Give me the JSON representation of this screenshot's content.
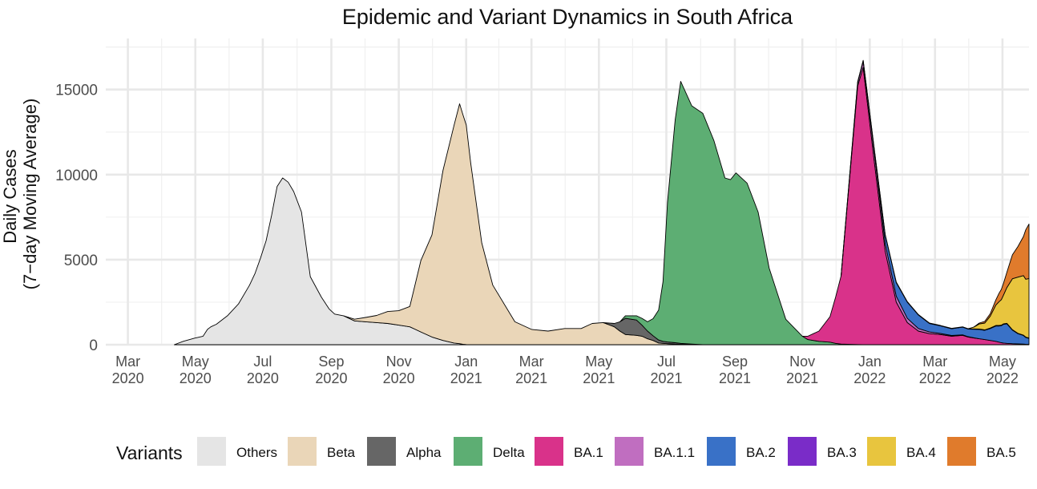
{
  "chart_data": {
    "type": "area",
    "stacked": true,
    "title": "Epidemic and Variant Dynamics in South Africa",
    "ylabel_lines": [
      "Daily Cases",
      "(7−day Moving Average)"
    ],
    "xlabel": "",
    "ylim": [
      0,
      18000
    ],
    "xlim_days": [
      -20,
      815
    ],
    "x_origin": "2020-03-01",
    "y_ticks": [
      {
        "value": 0,
        "label": "0"
      },
      {
        "value": 5000,
        "label": "5000"
      },
      {
        "value": 10000,
        "label": "10000"
      },
      {
        "value": 15000,
        "label": "15000"
      }
    ],
    "x_ticks": [
      {
        "day": 0,
        "month": "Mar",
        "year": "2020"
      },
      {
        "day": 61,
        "month": "May",
        "year": "2020"
      },
      {
        "day": 122,
        "month": "Jul",
        "year": "2020"
      },
      {
        "day": 184,
        "month": "Sep",
        "year": "2020"
      },
      {
        "day": 245,
        "month": "Nov",
        "year": "2020"
      },
      {
        "day": 306,
        "month": "Jan",
        "year": "2021"
      },
      {
        "day": 365,
        "month": "Mar",
        "year": "2021"
      },
      {
        "day": 426,
        "month": "May",
        "year": "2021"
      },
      {
        "day": 487,
        "month": "Jul",
        "year": "2021"
      },
      {
        "day": 549,
        "month": "Sep",
        "year": "2021"
      },
      {
        "day": 610,
        "month": "Nov",
        "year": "2021"
      },
      {
        "day": 671,
        "month": "Jan",
        "year": "2022"
      },
      {
        "day": 730,
        "month": "Mar",
        "year": "2022"
      },
      {
        "day": 791,
        "month": "May",
        "year": "2022"
      }
    ],
    "legend": {
      "title": "Variants",
      "position": "bottom",
      "entries": [
        {
          "name": "Others",
          "color": "#E5E5E5"
        },
        {
          "name": "Beta",
          "color": "#EAD6B8"
        },
        {
          "name": "Alpha",
          "color": "#666666"
        },
        {
          "name": "Delta",
          "color": "#5DAE73"
        },
        {
          "name": "BA.1",
          "color": "#D9328A"
        },
        {
          "name": "BA.1.1",
          "color": "#C06EC0"
        },
        {
          "name": "BA.2",
          "color": "#3971C7"
        },
        {
          "name": "BA.3",
          "color": "#7A2CC8"
        },
        {
          "name": "BA.4",
          "color": "#E8C53E"
        },
        {
          "name": "BA.5",
          "color": "#E07B2C"
        }
      ]
    },
    "x_days": [
      42,
      50,
      60,
      68,
      72,
      75,
      80,
      90,
      100,
      110,
      115,
      120,
      125,
      130,
      135,
      140,
      145,
      150,
      157,
      165,
      175,
      182,
      187,
      195,
      205,
      215,
      225,
      235,
      245,
      255,
      260,
      265,
      275,
      285,
      295,
      300,
      303,
      306,
      310,
      320,
      330,
      350,
      365,
      380,
      395,
      410,
      420,
      430,
      440,
      445,
      450,
      460,
      465,
      470,
      475,
      480,
      484,
      488,
      495,
      500,
      510,
      520,
      530,
      540,
      545,
      550,
      560,
      570,
      580,
      595,
      610,
      615,
      620,
      625,
      635,
      640,
      645,
      660,
      665,
      675,
      685,
      695,
      705,
      715,
      725,
      735,
      745,
      755,
      760,
      765,
      770,
      775,
      780,
      785,
      788,
      790,
      792,
      795,
      800,
      805,
      810,
      812,
      815
    ],
    "series": [
      {
        "name": "Others",
        "values": [
          0,
          200,
          380,
          500,
          900,
          1050,
          1200,
          1700,
          2400,
          3500,
          4200,
          5100,
          6100,
          7600,
          9300,
          9800,
          9550,
          9000,
          7800,
          4000,
          2800,
          2100,
          1800,
          1700,
          1400,
          1350,
          1300,
          1250,
          1150,
          1050,
          900,
          750,
          450,
          250,
          100,
          60,
          30,
          10,
          0,
          0,
          0,
          0,
          0,
          0,
          0,
          0,
          0,
          0,
          0,
          0,
          0,
          0,
          0,
          0,
          0,
          0,
          0,
          0,
          0,
          0,
          0,
          0,
          0,
          0,
          0,
          0,
          0,
          0,
          0,
          0,
          0,
          0,
          0,
          0,
          0,
          0,
          0,
          0,
          0,
          0,
          0,
          0,
          0,
          0,
          0,
          0,
          0,
          0,
          0,
          0,
          0,
          0,
          0,
          0,
          0,
          0,
          0,
          0,
          0,
          0,
          0,
          0,
          0
        ]
      },
      {
        "name": "Beta",
        "values": [
          0,
          0,
          0,
          0,
          0,
          0,
          0,
          0,
          0,
          0,
          0,
          0,
          0,
          0,
          0,
          0,
          0,
          0,
          0,
          0,
          0,
          0,
          0,
          0,
          100,
          250,
          420,
          700,
          850,
          1200,
          2700,
          4200,
          6000,
          10000,
          12800,
          14100,
          13500,
          12900,
          10700,
          6000,
          3500,
          1350,
          900,
          800,
          950,
          950,
          1250,
          1300,
          1050,
          800,
          600,
          550,
          500,
          350,
          250,
          100,
          80,
          60,
          40,
          30,
          20,
          0,
          0,
          0,
          0,
          0,
          0,
          0,
          0,
          0,
          0,
          0,
          0,
          0,
          0,
          0,
          0,
          0,
          0,
          0,
          0,
          0,
          0,
          0,
          0,
          0,
          0,
          0,
          0,
          0,
          0,
          0,
          0,
          0,
          0,
          0,
          0,
          0,
          0,
          0,
          0,
          0,
          0
        ]
      },
      {
        "name": "Alpha",
        "values": [
          0,
          0,
          0,
          0,
          0,
          0,
          0,
          0,
          0,
          0,
          0,
          0,
          0,
          0,
          0,
          0,
          0,
          0,
          0,
          0,
          0,
          0,
          0,
          0,
          0,
          0,
          0,
          0,
          0,
          0,
          0,
          0,
          0,
          0,
          0,
          0,
          0,
          0,
          0,
          0,
          0,
          0,
          0,
          0,
          0,
          0,
          0,
          0,
          200,
          550,
          950,
          900,
          650,
          450,
          280,
          180,
          120,
          100,
          80,
          50,
          20,
          0,
          0,
          0,
          0,
          0,
          0,
          0,
          0,
          0,
          0,
          0,
          0,
          0,
          0,
          0,
          0,
          0,
          0,
          0,
          0,
          0,
          0,
          0,
          0,
          0,
          0,
          0,
          0,
          0,
          0,
          0,
          0,
          0,
          0,
          0,
          0,
          0,
          0,
          0,
          0,
          0,
          0
        ]
      },
      {
        "name": "Delta",
        "values": [
          0,
          0,
          0,
          0,
          0,
          0,
          0,
          0,
          0,
          0,
          0,
          0,
          0,
          0,
          0,
          0,
          0,
          0,
          0,
          0,
          0,
          0,
          0,
          0,
          0,
          0,
          0,
          0,
          0,
          0,
          0,
          0,
          0,
          0,
          0,
          0,
          0,
          0,
          0,
          0,
          0,
          0,
          0,
          0,
          0,
          0,
          0,
          0,
          0,
          0,
          150,
          250,
          400,
          550,
          1000,
          1750,
          3500,
          8200,
          13100,
          15400,
          14000,
          13600,
          12000,
          9800,
          9700,
          10100,
          9500,
          7800,
          4500,
          1500,
          500,
          300,
          250,
          200,
          150,
          80,
          40,
          10,
          0,
          0,
          0,
          0,
          0,
          0,
          0,
          0,
          0,
          0,
          0,
          0,
          0,
          0,
          0,
          0,
          0,
          0,
          0,
          0,
          0,
          0,
          0,
          0,
          0
        ]
      },
      {
        "name": "BA.1",
        "values": [
          0,
          0,
          0,
          0,
          0,
          0,
          0,
          0,
          0,
          0,
          0,
          0,
          0,
          0,
          0,
          0,
          0,
          0,
          0,
          0,
          0,
          0,
          0,
          0,
          0,
          0,
          0,
          0,
          0,
          0,
          0,
          0,
          0,
          0,
          0,
          0,
          0,
          0,
          0,
          0,
          0,
          0,
          0,
          0,
          0,
          0,
          0,
          0,
          0,
          0,
          0,
          0,
          0,
          0,
          0,
          0,
          0,
          0,
          0,
          0,
          0,
          0,
          0,
          0,
          0,
          0,
          0,
          0,
          0,
          0,
          0,
          200,
          400,
          600,
          1500,
          2700,
          4000,
          15200,
          16300,
          10800,
          5500,
          2500,
          1300,
          800,
          650,
          600,
          500,
          550,
          450,
          400,
          350,
          300,
          250,
          200,
          150,
          120,
          100,
          80,
          60,
          50,
          40,
          30,
          20
        ]
      },
      {
        "name": "BA.1.1",
        "values": [
          0,
          0,
          0,
          0,
          0,
          0,
          0,
          0,
          0,
          0,
          0,
          0,
          0,
          0,
          0,
          0,
          0,
          0,
          0,
          0,
          0,
          0,
          0,
          0,
          0,
          0,
          0,
          0,
          0,
          0,
          0,
          0,
          0,
          0,
          0,
          0,
          0,
          0,
          0,
          0,
          0,
          0,
          0,
          0,
          0,
          0,
          0,
          0,
          0,
          0,
          0,
          0,
          0,
          0,
          0,
          0,
          0,
          0,
          0,
          0,
          0,
          0,
          0,
          0,
          0,
          0,
          0,
          0,
          0,
          0,
          0,
          0,
          0,
          0,
          0,
          0,
          0,
          200,
          350,
          550,
          450,
          350,
          250,
          150,
          100,
          60,
          40,
          30,
          20,
          10,
          0,
          0,
          0,
          0,
          0,
          0,
          0,
          0,
          0,
          0,
          0,
          0,
          0
        ]
      },
      {
        "name": "BA.2",
        "values": [
          0,
          0,
          0,
          0,
          0,
          0,
          0,
          0,
          0,
          0,
          0,
          0,
          0,
          0,
          0,
          0,
          0,
          0,
          0,
          0,
          0,
          0,
          0,
          0,
          0,
          0,
          0,
          0,
          0,
          0,
          0,
          0,
          0,
          0,
          0,
          0,
          0,
          0,
          0,
          0,
          0,
          0,
          0,
          0,
          0,
          0,
          0,
          0,
          0,
          0,
          0,
          0,
          0,
          0,
          0,
          0,
          0,
          0,
          0,
          0,
          0,
          0,
          0,
          0,
          0,
          0,
          0,
          0,
          0,
          0,
          0,
          0,
          0,
          0,
          0,
          0,
          0,
          30,
          50,
          150,
          500,
          800,
          950,
          800,
          500,
          450,
          400,
          450,
          450,
          500,
          550,
          550,
          700,
          900,
          950,
          1000,
          1100,
          1150,
          800,
          600,
          500,
          400,
          350
        ]
      },
      {
        "name": "BA.3",
        "values": [
          0,
          0,
          0,
          0,
          0,
          0,
          0,
          0,
          0,
          0,
          0,
          0,
          0,
          0,
          0,
          0,
          0,
          0,
          0,
          0,
          0,
          0,
          0,
          0,
          0,
          0,
          0,
          0,
          0,
          0,
          0,
          0,
          0,
          0,
          0,
          0,
          0,
          0,
          0,
          0,
          0,
          0,
          0,
          0,
          0,
          0,
          0,
          0,
          0,
          0,
          0,
          0,
          0,
          0,
          0,
          0,
          0,
          0,
          0,
          0,
          0,
          0,
          0,
          0,
          0,
          0,
          0,
          0,
          0,
          0,
          0,
          0,
          0,
          0,
          0,
          0,
          0,
          0,
          20,
          30,
          30,
          30,
          30,
          20,
          20,
          20,
          20,
          20,
          20,
          20,
          20,
          20,
          30,
          30,
          30,
          30,
          30,
          30,
          20,
          20,
          20,
          20,
          20
        ]
      },
      {
        "name": "BA.4",
        "values": [
          0,
          0,
          0,
          0,
          0,
          0,
          0,
          0,
          0,
          0,
          0,
          0,
          0,
          0,
          0,
          0,
          0,
          0,
          0,
          0,
          0,
          0,
          0,
          0,
          0,
          0,
          0,
          0,
          0,
          0,
          0,
          0,
          0,
          0,
          0,
          0,
          0,
          0,
          0,
          0,
          0,
          0,
          0,
          0,
          0,
          0,
          0,
          0,
          0,
          0,
          0,
          0,
          0,
          0,
          0,
          0,
          0,
          0,
          0,
          0,
          0,
          0,
          0,
          0,
          0,
          0,
          0,
          0,
          0,
          0,
          0,
          0,
          0,
          0,
          0,
          0,
          0,
          0,
          0,
          0,
          0,
          0,
          0,
          0,
          0,
          0,
          0,
          0,
          0,
          100,
          300,
          400,
          700,
          1200,
          1400,
          1500,
          1700,
          2100,
          3000,
          3300,
          3500,
          3400,
          3500
        ]
      },
      {
        "name": "BA.5",
        "values": [
          0,
          0,
          0,
          0,
          0,
          0,
          0,
          0,
          0,
          0,
          0,
          0,
          0,
          0,
          0,
          0,
          0,
          0,
          0,
          0,
          0,
          0,
          0,
          0,
          0,
          0,
          0,
          0,
          0,
          0,
          0,
          0,
          0,
          0,
          0,
          0,
          0,
          0,
          0,
          0,
          0,
          0,
          0,
          0,
          0,
          0,
          0,
          0,
          0,
          0,
          0,
          0,
          0,
          0,
          0,
          0,
          0,
          0,
          0,
          0,
          0,
          0,
          0,
          0,
          0,
          0,
          0,
          0,
          0,
          0,
          0,
          0,
          0,
          0,
          0,
          0,
          0,
          0,
          0,
          0,
          0,
          0,
          0,
          0,
          0,
          0,
          0,
          0,
          0,
          0,
          50,
          100,
          150,
          300,
          500,
          600,
          700,
          900,
          1400,
          1800,
          2300,
          2900,
          3200
        ]
      }
    ]
  }
}
